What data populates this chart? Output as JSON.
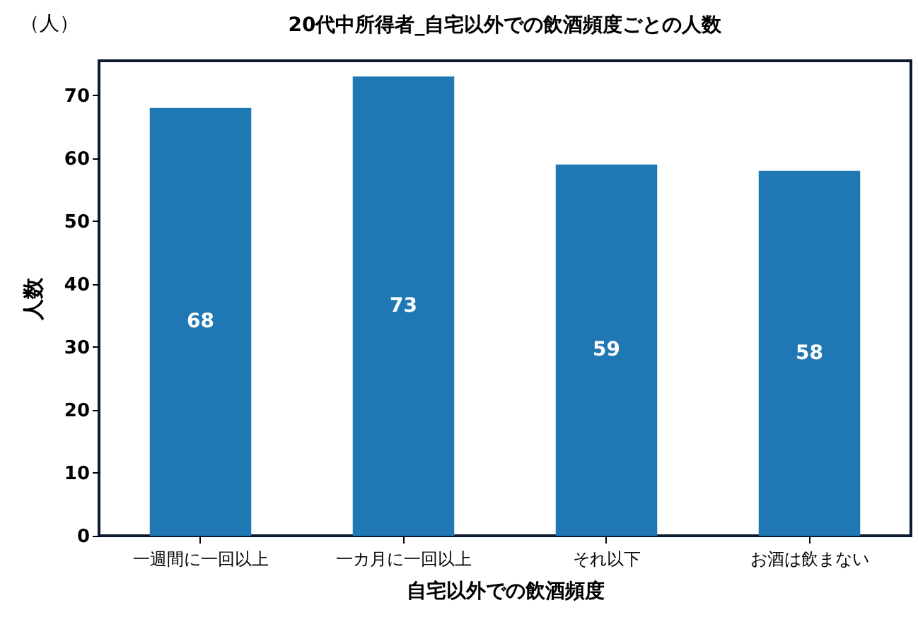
{
  "chart_data": {
    "type": "bar",
    "title": "20代中所得者_自宅以外での飲酒頻度ごとの人数",
    "xlabel": "自宅以外での飲酒頻度",
    "ylabel": "人数",
    "annotations": [
      "（人）"
    ],
    "categories": [
      "一週間に一回以上",
      "一カ月に一回以上",
      "それ以下",
      "お酒は飲まない"
    ],
    "values": [
      68,
      73,
      59,
      58
    ],
    "color": "#1f77b4",
    "data_labels": true,
    "ylim": [
      0,
      75.5
    ],
    "yticks": [
      0,
      10,
      20,
      30,
      40,
      50,
      60,
      70
    ],
    "grid": false
  }
}
